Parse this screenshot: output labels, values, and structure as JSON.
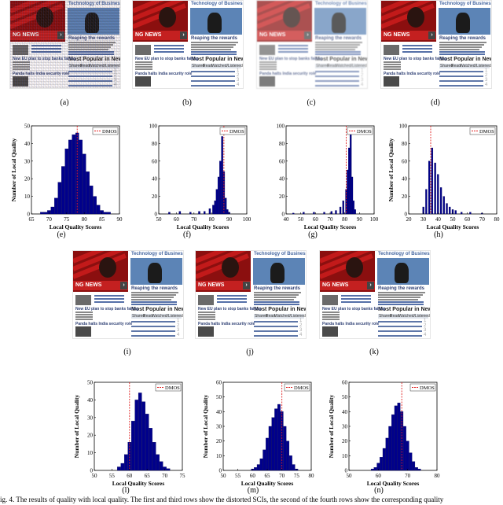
{
  "figure": {
    "thumbs": [
      {
        "label": "(a)",
        "distortion": "noise"
      },
      {
        "label": "(b)",
        "distortion": "none"
      },
      {
        "label": "(c)",
        "distortion": "blur"
      },
      {
        "label": "(d)",
        "distortion": "crop"
      },
      {
        "label": "(i)",
        "distortion": "none"
      },
      {
        "label": "(j)",
        "distortion": "none"
      },
      {
        "label": "(k)",
        "distortion": "none"
      }
    ],
    "screen_text": {
      "title": "Technology of Business",
      "banner": "NG NEWS",
      "reaping": "Reaping the rewards",
      "most_popular": "Most Popular in News",
      "tab_shared": "Shared",
      "tab_read": "Read",
      "tab_watched": "Watched/Listened",
      "left_story": "New EU plan to stop banks failing",
      "left_story2": "Panda halts India security role"
    },
    "caption_fragment": "ig. 4.  The results of quality with local quality. The first and third rows show the distorted SCIs, the second of the fourth rows show the corresponding quality"
  },
  "chart_data": [
    {
      "label": "(e)",
      "type": "bar",
      "xlabel": "Local Quality Scores",
      "ylabel": "Number of Local Quality",
      "legend": "DMOS",
      "dmos": 78,
      "xlim": [
        65,
        90
      ],
      "xticks": [
        65,
        70,
        75,
        80,
        85,
        90
      ],
      "ylim": [
        0,
        50
      ],
      "yticks": [
        0,
        10,
        20,
        30,
        40,
        50
      ],
      "x": [
        68,
        69,
        70,
        71,
        72,
        73,
        74,
        75,
        76,
        77,
        78,
        79,
        80,
        81,
        82,
        83,
        84,
        85,
        86,
        87
      ],
      "values": [
        1,
        1,
        2,
        4,
        9,
        18,
        27,
        37,
        42,
        45,
        46,
        42,
        34,
        24,
        16,
        10,
        5,
        2,
        1,
        1
      ]
    },
    {
      "label": "(f)",
      "type": "bar",
      "xlabel": "Local Quality Scores",
      "ylabel": "",
      "legend": "DMOS",
      "dmos": 87,
      "xlim": [
        50,
        100
      ],
      "xticks": [
        50,
        60,
        70,
        80,
        90,
        100
      ],
      "ylim": [
        0,
        100
      ],
      "yticks": [
        0,
        20,
        40,
        60,
        80,
        100
      ],
      "x": [
        56,
        62,
        68,
        73,
        76,
        79,
        81,
        82,
        83,
        84,
        85,
        86,
        87,
        88,
        89,
        90
      ],
      "values": [
        2,
        3,
        2,
        3,
        3,
        6,
        10,
        15,
        28,
        42,
        60,
        88,
        48,
        18,
        5,
        2
      ]
    },
    {
      "label": "(g)",
      "type": "bar",
      "xlabel": "Local Quality Scores",
      "ylabel": "",
      "legend": "DMOS",
      "dmos": 81,
      "xlim": [
        40,
        100
      ],
      "xticks": [
        40,
        50,
        60,
        70,
        80,
        90,
        100
      ],
      "ylim": [
        0,
        100
      ],
      "yticks": [
        0,
        20,
        40,
        60,
        80,
        100
      ],
      "x": [
        45,
        52,
        59,
        66,
        71,
        74,
        77,
        79,
        81,
        82,
        83,
        84,
        85,
        86,
        87
      ],
      "values": [
        1,
        2,
        2,
        2,
        3,
        4,
        8,
        15,
        28,
        50,
        75,
        90,
        42,
        15,
        5
      ]
    },
    {
      "label": "(h)",
      "type": "bar",
      "xlabel": "Local Quality Scores",
      "ylabel": "Number of Local Quality",
      "legend": "DMOS",
      "dmos": 35,
      "xlim": [
        20,
        80
      ],
      "xticks": [
        20,
        30,
        40,
        50,
        60,
        70,
        80
      ],
      "ylim": [
        0,
        100
      ],
      "yticks": [
        0,
        20,
        40,
        60,
        80,
        100
      ],
      "x": [
        30,
        32,
        34,
        36,
        38,
        40,
        42,
        44,
        46,
        48,
        50,
        52,
        56,
        62,
        70
      ],
      "values": [
        8,
        28,
        60,
        75,
        58,
        45,
        30,
        20,
        12,
        8,
        5,
        4,
        2,
        2,
        1
      ]
    },
    {
      "label": "(l)",
      "type": "bar",
      "xlabel": "Local Quality Scores",
      "ylabel": "Number of Local Quality",
      "legend": "DMOS",
      "dmos": 60,
      "xlim": [
        50,
        75
      ],
      "xticks": [
        50,
        55,
        60,
        65,
        70,
        75
      ],
      "ylim": [
        0,
        50
      ],
      "yticks": [
        0,
        10,
        20,
        30,
        40,
        50
      ],
      "x": [
        57,
        58,
        59,
        60,
        61,
        62,
        63,
        64,
        65,
        66,
        67,
        68,
        69,
        70,
        71
      ],
      "values": [
        2,
        4,
        9,
        16,
        28,
        40,
        44,
        39,
        32,
        24,
        16,
        9,
        5,
        2,
        1
      ]
    },
    {
      "label": "(m)",
      "type": "bar",
      "xlabel": "Local Quality Scores",
      "ylabel": "Number of Local Quality",
      "legend": "DMOS",
      "dmos": 70,
      "xlim": [
        50,
        80
      ],
      "xticks": [
        50,
        55,
        60,
        65,
        70,
        75,
        80
      ],
      "ylim": [
        0,
        60
      ],
      "yticks": [
        0,
        10,
        20,
        30,
        40,
        50,
        60
      ],
      "x": [
        60,
        61,
        62,
        63,
        64,
        65,
        66,
        67,
        68,
        69,
        70,
        71,
        72,
        73,
        74,
        75
      ],
      "values": [
        1,
        2,
        4,
        8,
        14,
        22,
        30,
        36,
        42,
        45,
        40,
        30,
        20,
        10,
        4,
        1
      ]
    },
    {
      "label": "(n)",
      "type": "bar",
      "xlabel": "Local Quality Scores",
      "ylabel": "Number of Local Quality",
      "legend": "DMOS",
      "dmos": 68,
      "xlim": [
        50,
        80
      ],
      "xticks": [
        50,
        60,
        70,
        80
      ],
      "ylim": [
        0,
        60
      ],
      "yticks": [
        0,
        10,
        20,
        30,
        40,
        50,
        60
      ],
      "x": [
        58,
        59,
        60,
        61,
        62,
        63,
        64,
        65,
        66,
        67,
        68,
        69,
        70,
        71,
        72,
        73,
        74
      ],
      "values": [
        1,
        2,
        5,
        9,
        15,
        22,
        30,
        38,
        44,
        46,
        40,
        30,
        20,
        12,
        6,
        2,
        1
      ]
    }
  ]
}
